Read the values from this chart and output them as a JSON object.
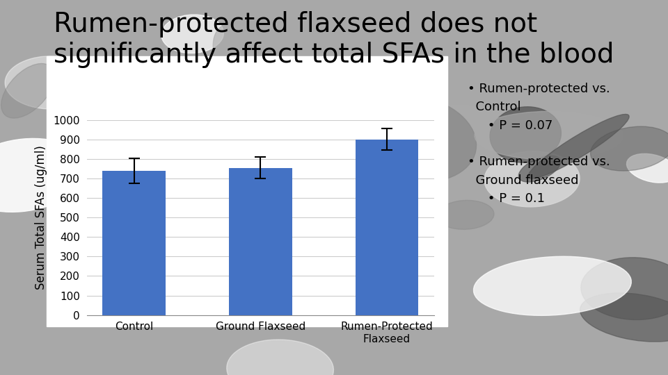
{
  "title_line1": "Rumen-protected flaxseed does not",
  "title_line2": "significantly affect total SFAs in the blood",
  "categories": [
    "Control",
    "Ground Flaxseed",
    "Rumen-Protected\nFlaxseed"
  ],
  "values": [
    740,
    755,
    900
  ],
  "errors": [
    65,
    55,
    55
  ],
  "bar_color": "#4472C4",
  "ylabel": "Serum Total SFAs (ug/ml)",
  "ylim": [
    0,
    1000
  ],
  "yticks": [
    0,
    100,
    200,
    300,
    400,
    500,
    600,
    700,
    800,
    900,
    1000
  ],
  "background_color": "#b0b0b0",
  "plot_area_color": "#ffffff",
  "title_fontsize": 28,
  "axis_fontsize": 12,
  "tick_fontsize": 11,
  "annotation_fontsize": 13,
  "ann_bullet1": "Rumen-protected vs.\nControl",
  "ann_sub1": "P = 0.07",
  "ann_bullet2": "Rumen-protected vs.\nGround flaxseed",
  "ann_sub2": "P = 0.1"
}
